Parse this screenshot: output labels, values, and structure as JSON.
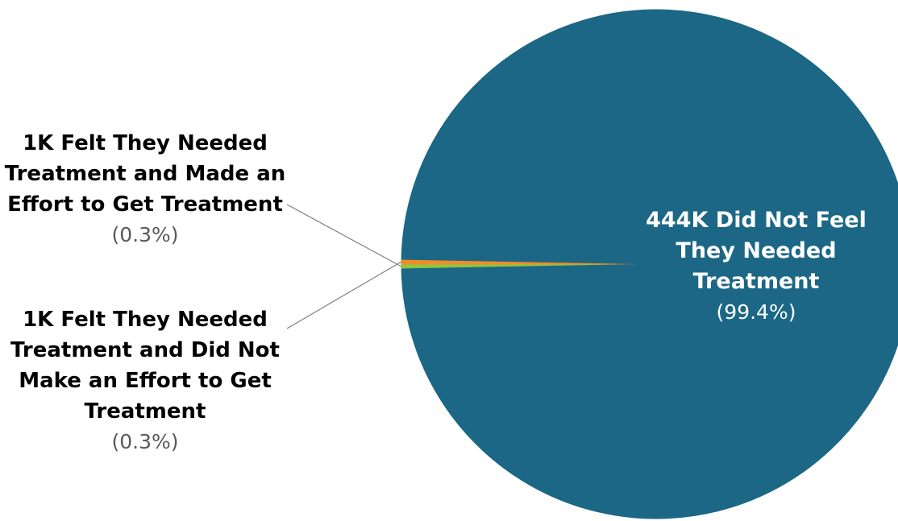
{
  "chart_data": {
    "type": "pie",
    "title": "",
    "slices": [
      {
        "label_lines": [
          "444K Did Not Feel",
          "They Needed",
          "Treatment"
        ],
        "count": "444K",
        "percent_text": "(99.4%)",
        "value": 99.4,
        "color": "#1C6785"
      },
      {
        "label_lines": [
          "1K Felt They Needed",
          "Treatment and Made an",
          "Effort to Get Treatment"
        ],
        "count": "1K",
        "percent_text": "(0.3%)",
        "value": 0.3,
        "color": "#8CC63F"
      },
      {
        "label_lines": [
          "1K Felt They Needed",
          "Treatment and Did Not",
          "Make an Effort to Get",
          "Treatment"
        ],
        "count": "1K",
        "percent_text": "(0.3%)",
        "value": 0.3,
        "color": "#F28C28"
      }
    ]
  }
}
